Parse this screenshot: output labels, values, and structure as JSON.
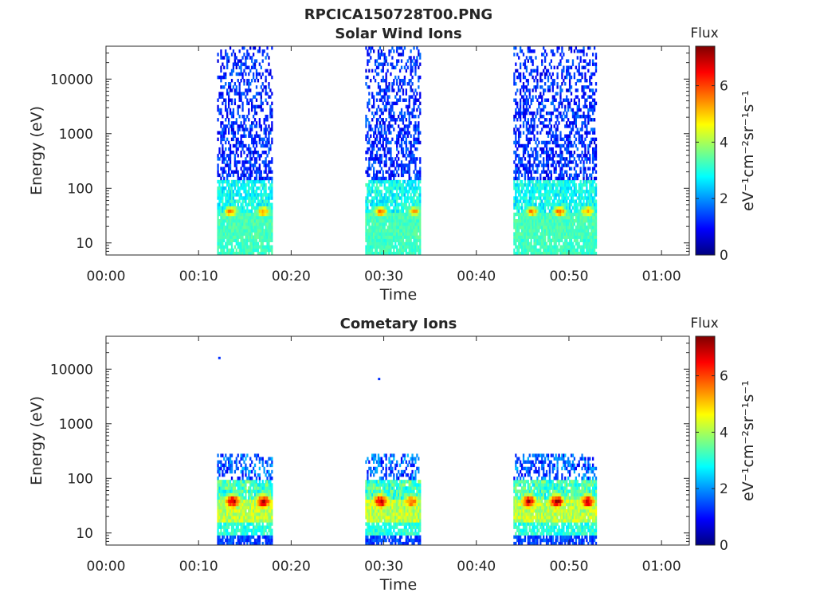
{
  "figure_title": "RPCICA150728T00.PNG",
  "colors": {
    "colormap": [
      "#00007f",
      "#0000ff",
      "#007fff",
      "#00ffff",
      "#7fff7f",
      "#ffff00",
      "#ff7f00",
      "#ff0000",
      "#7f0000"
    ],
    "axis": "#262626",
    "background": "#ffffff"
  },
  "chart_data": [
    {
      "type": "heatmap",
      "title": "Solar Wind Ions",
      "xlabel": "Time",
      "ylabel": "Energy (eV)",
      "y_scale": "log",
      "x_unit": "minutes",
      "xlim": [
        "00:00",
        "01:03"
      ],
      "ylim_eV": [
        6,
        40000
      ],
      "x_ticks": [
        "00:00",
        "00:10",
        "00:20",
        "00:30",
        "00:40",
        "00:50",
        "01:00"
      ],
      "y_ticks": [
        "10",
        "100",
        "1000",
        "10000"
      ],
      "colorbar": {
        "title": "Flux",
        "label": "eV⁻¹cm⁻²sr⁻¹s⁻¹",
        "range": [
          0,
          7.4
        ],
        "ticks": [
          "0",
          "2",
          "4",
          "6"
        ]
      },
      "scan_blocks": [
        {
          "start": "00:12",
          "end": "00:18",
          "peaks": [
            {
              "time": "00:13:30",
              "energy_eV": 38,
              "flux": 5.8
            },
            {
              "time": "00:17:00",
              "energy_eV": 38,
              "flux": 5.6
            }
          ]
        },
        {
          "start": "00:28",
          "end": "00:34",
          "peaks": [
            {
              "time": "00:29:40",
              "energy_eV": 38,
              "flux": 5.9
            },
            {
              "time": "00:33:20",
              "energy_eV": 38,
              "flux": 5.4
            }
          ]
        },
        {
          "start": "00:44",
          "end": "00:53",
          "peaks": [
            {
              "time": "00:46:00",
              "energy_eV": 38,
              "flux": 5.7
            },
            {
              "time": "00:49:00",
              "energy_eV": 38,
              "flux": 5.9
            },
            {
              "time": "00:52:00",
              "energy_eV": 38,
              "flux": 5.6
            }
          ]
        }
      ]
    },
    {
      "type": "heatmap",
      "title": "Cometary Ions",
      "xlabel": "Time",
      "ylabel": "Energy (eV)",
      "y_scale": "log",
      "x_unit": "minutes",
      "xlim": [
        "00:00",
        "01:03"
      ],
      "ylim_eV": [
        6,
        40000
      ],
      "x_ticks": [
        "00:00",
        "00:10",
        "00:20",
        "00:30",
        "00:40",
        "00:50",
        "01:00"
      ],
      "y_ticks": [
        "10",
        "100",
        "1000",
        "10000"
      ],
      "colorbar": {
        "title": "Flux",
        "label": "eV⁻¹cm⁻²sr⁻¹s⁻¹",
        "range": [
          0,
          7.4
        ],
        "ticks": [
          "0",
          "2",
          "4",
          "6"
        ]
      },
      "scan_blocks": [
        {
          "start": "00:12",
          "end": "00:18",
          "peaks": [
            {
              "time": "00:13:40",
              "energy_eV": 38,
              "flux": 7.1
            },
            {
              "time": "00:17:00",
              "energy_eV": 38,
              "flux": 7.0
            }
          ]
        },
        {
          "start": "00:28",
          "end": "00:34",
          "peaks": [
            {
              "time": "00:29:40",
              "energy_eV": 38,
              "flux": 7.2
            },
            {
              "time": "00:33:00",
              "energy_eV": 38,
              "flux": 6.0
            }
          ]
        },
        {
          "start": "00:44",
          "end": "00:53",
          "peaks": [
            {
              "time": "00:45:40",
              "energy_eV": 38,
              "flux": 7.0
            },
            {
              "time": "00:48:40",
              "energy_eV": 38,
              "flux": 7.2
            },
            {
              "time": "00:52:00",
              "energy_eV": 38,
              "flux": 7.0
            }
          ]
        }
      ],
      "isolated_points": [
        {
          "time": "00:12:15",
          "energy_eV": 16000
        },
        {
          "time": "00:29:30",
          "energy_eV": 6600
        }
      ]
    }
  ]
}
